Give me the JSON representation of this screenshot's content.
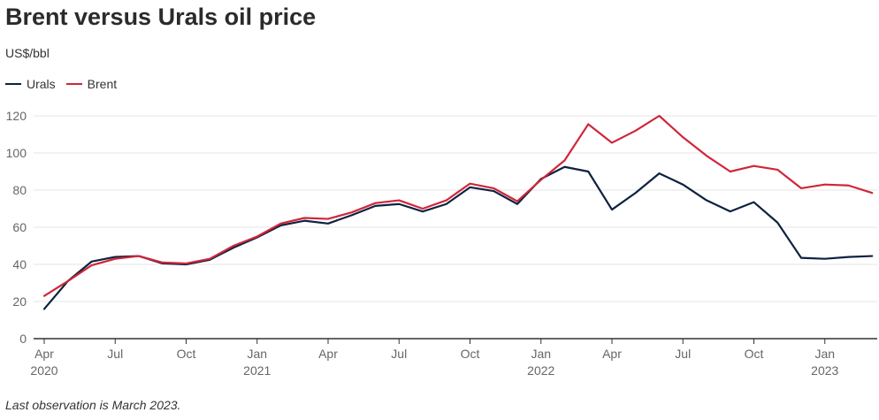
{
  "chart_data": {
    "type": "line",
    "title": "Brent versus Urals oil price",
    "ylabel": "US$/bbl",
    "note": "Last observation is March 2023.",
    "ylim": [
      0,
      120
    ],
    "yticks": [
      0,
      20,
      40,
      60,
      80,
      100,
      120
    ],
    "grid": "horizontal",
    "legend_position": "top-left",
    "x": [
      "2020-04",
      "2020-05",
      "2020-06",
      "2020-07",
      "2020-08",
      "2020-09",
      "2020-10",
      "2020-11",
      "2020-12",
      "2021-01",
      "2021-02",
      "2021-03",
      "2021-04",
      "2021-05",
      "2021-06",
      "2021-07",
      "2021-08",
      "2021-09",
      "2021-10",
      "2021-11",
      "2021-12",
      "2022-01",
      "2022-02",
      "2022-03",
      "2022-04",
      "2022-05",
      "2022-06",
      "2022-07",
      "2022-08",
      "2022-09",
      "2022-10",
      "2022-11",
      "2022-12",
      "2023-01",
      "2023-02",
      "2023-03"
    ],
    "xticks": [
      {
        "x": "2020-04",
        "month": "Apr",
        "year": "2020"
      },
      {
        "x": "2020-07",
        "month": "Jul",
        "year": ""
      },
      {
        "x": "2020-10",
        "month": "Oct",
        "year": ""
      },
      {
        "x": "2021-01",
        "month": "Jan",
        "year": "2021"
      },
      {
        "x": "2021-04",
        "month": "Apr",
        "year": ""
      },
      {
        "x": "2021-07",
        "month": "Jul",
        "year": ""
      },
      {
        "x": "2021-10",
        "month": "Oct",
        "year": ""
      },
      {
        "x": "2022-01",
        "month": "Jan",
        "year": "2022"
      },
      {
        "x": "2022-04",
        "month": "Apr",
        "year": ""
      },
      {
        "x": "2022-07",
        "month": "Jul",
        "year": ""
      },
      {
        "x": "2022-10",
        "month": "Oct",
        "year": ""
      },
      {
        "x": "2023-01",
        "month": "Jan",
        "year": "2023"
      }
    ],
    "series": [
      {
        "name": "Urals",
        "color": "#0d2240",
        "values": [
          16,
          31,
          41.5,
          44,
          44.5,
          40.5,
          40,
          42.5,
          49,
          54.5,
          61,
          63.5,
          62,
          66.5,
          71.5,
          72.5,
          68.5,
          72.5,
          81.5,
          79.5,
          72.5,
          86,
          92.5,
          90,
          69.5,
          78.5,
          89,
          83,
          74.5,
          68.5,
          73.5,
          62.5,
          43.5,
          43,
          44,
          44.5
        ]
      },
      {
        "name": "Brent",
        "color": "#d0263a",
        "values": [
          23,
          31,
          39.5,
          43,
          44.5,
          41,
          40.5,
          43,
          50,
          55,
          62,
          65,
          64.5,
          68,
          73,
          74.5,
          70,
          74.5,
          83.5,
          81,
          74,
          85.5,
          96,
          115.5,
          105.5,
          112,
          120,
          108.5,
          98.5,
          90,
          93,
          91,
          81,
          83,
          82.5,
          78.5
        ]
      }
    ]
  }
}
